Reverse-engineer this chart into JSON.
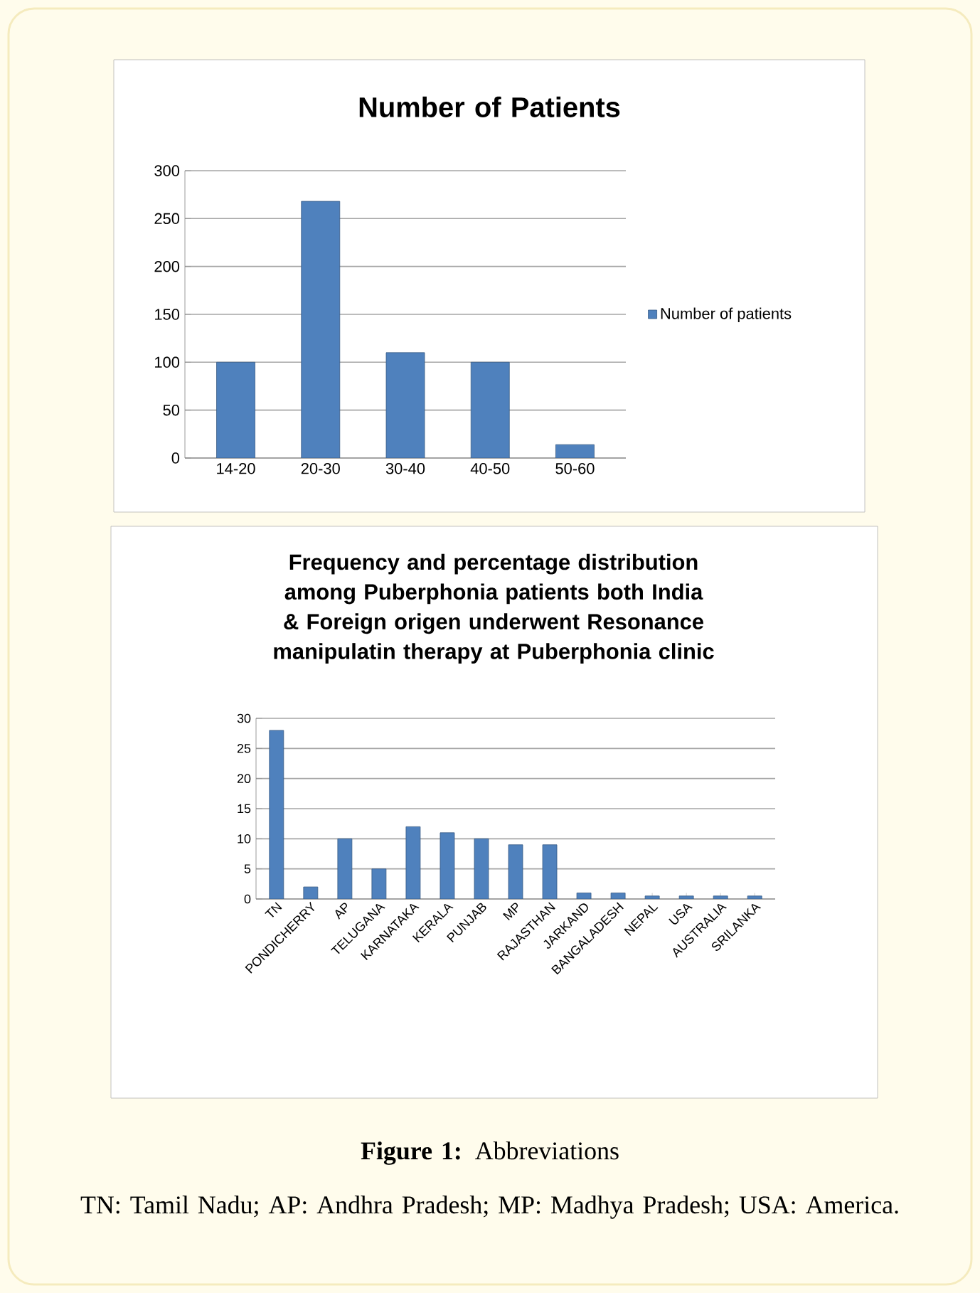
{
  "chart_data": [
    {
      "type": "bar",
      "title": "Number of Patients",
      "categories": [
        "14-20",
        "20-30",
        "30-40",
        "40-50",
        "50-60"
      ],
      "series": [
        {
          "name": "Number of patients",
          "color": "#4f81bd",
          "values": [
            100,
            268,
            110,
            100,
            14
          ]
        }
      ],
      "ylim": [
        0,
        300
      ],
      "yticks": [
        0,
        50,
        100,
        150,
        200,
        250,
        300
      ],
      "grid": "y",
      "legend": "right"
    },
    {
      "type": "bar",
      "title": "Frequency and percentage distribution among Puberphonia patients both India & Foreign origen underwent Resonance manipulatin therapy at Puberphonia clinic",
      "categories": [
        "TN",
        "PONDICHERRY",
        "AP",
        "TELUGANA",
        "KARNATAKA",
        "KERALA",
        "PUNJAB",
        "MP",
        "RAJASTHAN",
        "JARKAND",
        "BANGALADESH",
        "NEPAL",
        "USA",
        "AUSTRALIA",
        "SRILANKA"
      ],
      "color": "#4f81bd",
      "values": [
        28,
        2,
        10,
        5,
        12,
        11,
        10,
        9,
        9,
        1,
        1,
        0.5,
        0.5,
        0.5,
        0.5
      ],
      "ylim": [
        0,
        30
      ],
      "yticks": [
        0,
        5,
        10,
        15,
        20,
        25,
        30
      ],
      "grid": "y",
      "annotations": [
        "**Figure 1:** Abbreviations",
        "TN: Tamil Nadu; AP: Andhra Pradesh; MP: Madhya Pradesh; USA: America."
      ]
    }
  ]
}
